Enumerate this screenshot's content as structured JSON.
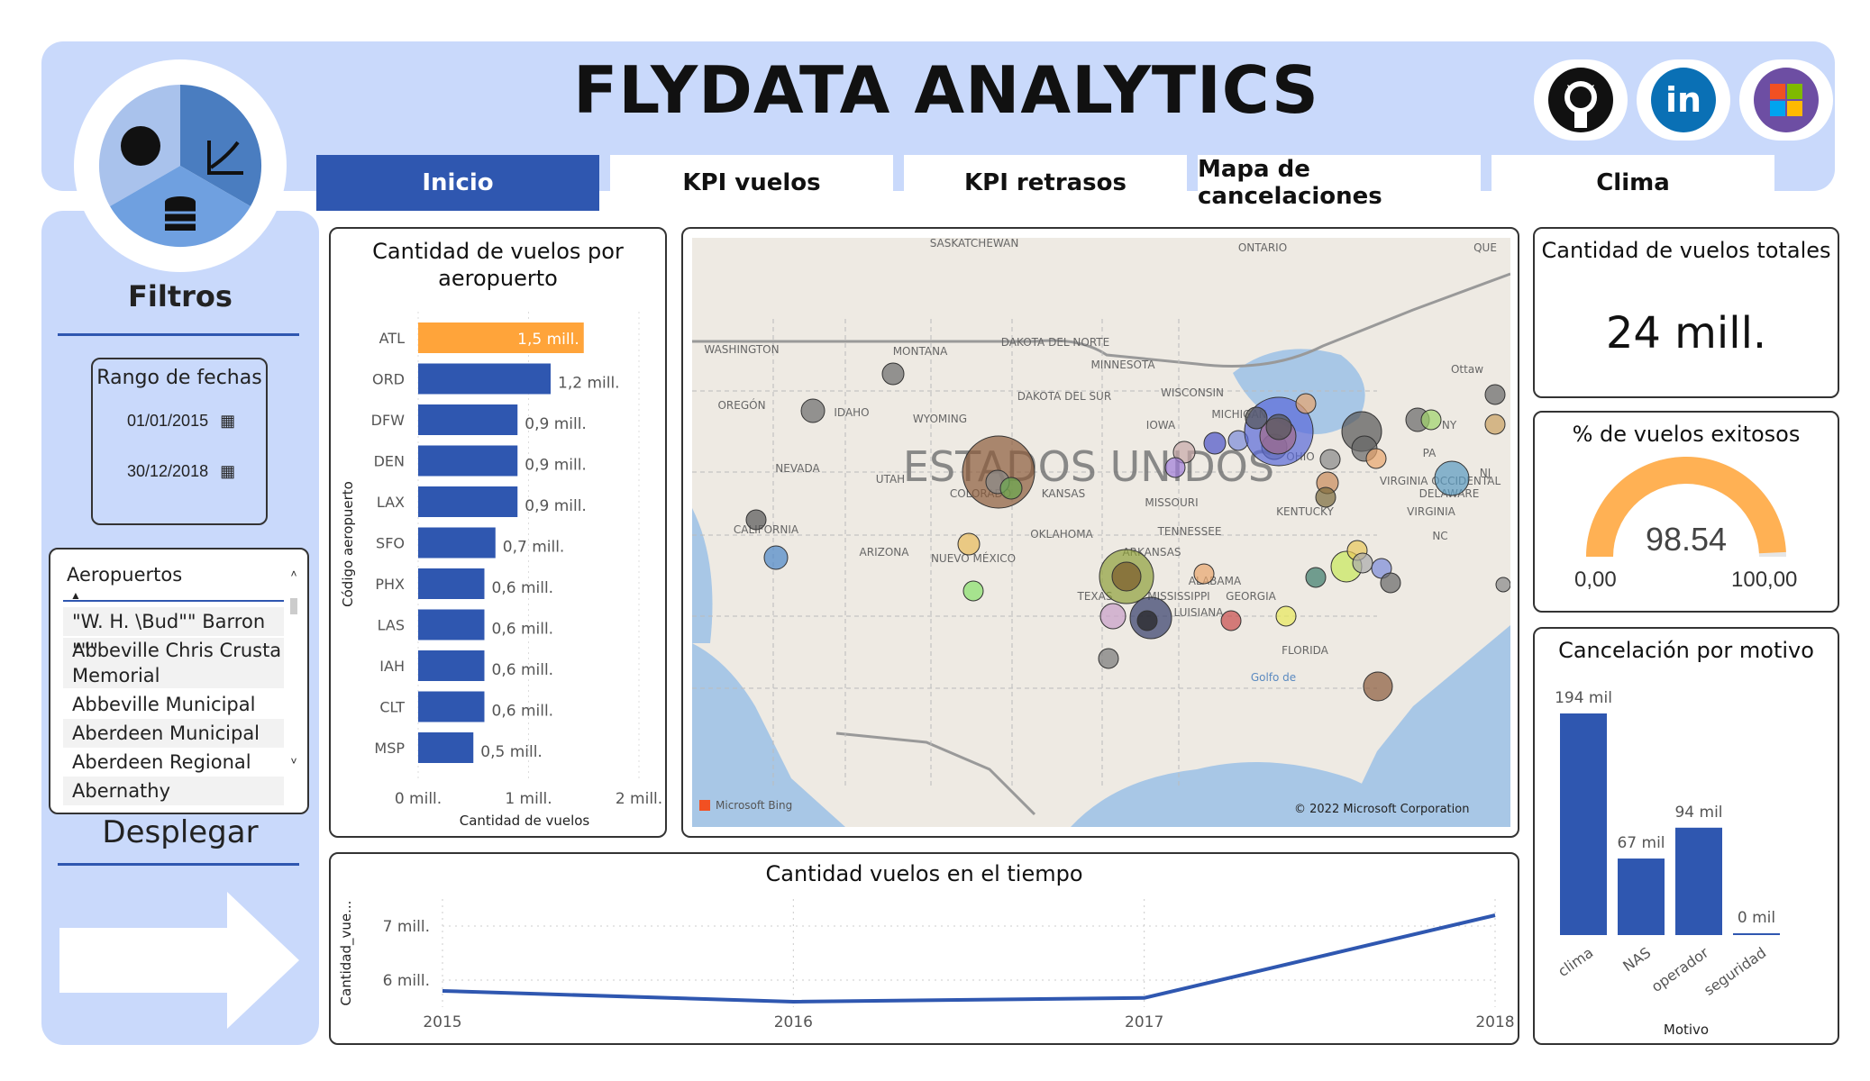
{
  "header": {
    "title": "FLYDATA ANALYTICS"
  },
  "social": [
    "github-icon",
    "linkedin-icon",
    "microsoft-icon"
  ],
  "tabs": [
    {
      "label": "Inicio",
      "active": true
    },
    {
      "label": "KPI vuelos",
      "active": false
    },
    {
      "label": "KPI retrasos",
      "active": false
    },
    {
      "label": "Mapa de cancelaciones",
      "active": false
    },
    {
      "label": "Clima",
      "active": false
    }
  ],
  "sidebar": {
    "filters_title": "Filtros",
    "date_range": {
      "label": "Rango de fechas",
      "start": "01/01/2015",
      "end": "30/12/2018"
    },
    "airports": {
      "header": "Aeropuertos",
      "items": [
        "\"W. H. \\Bud\"\" Barron \"\"\"",
        "Abbeville Chris Crusta Memorial",
        "Abbeville Municipal",
        "Aberdeen Municipal",
        "Aberdeen Regional",
        "Abernathy"
      ]
    },
    "expand_label": "Desplegar"
  },
  "bar_chart": {
    "title": "Cantidad de vuelos por aeropuerto",
    "xlabel": "Cantidad de vuelos",
    "ylabel": "Código aeropuerto",
    "xticks": [
      "0 mill.",
      "1 mill.",
      "2 mill."
    ]
  },
  "map": {
    "country_label": "ESTADOS UNIDOS",
    "copyright": "© 2022 Microsoft Corporation",
    "brand": "Microsoft Bing",
    "labels": [
      "SASKATCHEWAN",
      "ONTARIO",
      "QUE",
      "WASHINGTON",
      "MONTANA",
      "DAKOTA DEL NORTE",
      "MINNESOTA",
      "Ottaw",
      "OREGÓN",
      "IDAHO",
      "WYOMING",
      "DAKOTA DEL SUR",
      "WISCONSIN",
      "MICHIGAN",
      "NY",
      "IOWA",
      "OHIO",
      "PA",
      "NJ",
      "NEVADA",
      "UTAH",
      "COLORADO",
      "KANSAS",
      "MISSOURI",
      "VIRGINIA OCCIDENTAL",
      "DELAWARE",
      "KENTUCKY",
      "VIRGINIA",
      "CALIFORNIA",
      "OKLAHOMA",
      "TENNESSEE",
      "NC",
      "ARIZONA",
      "NUEVO MÉXICO",
      "ARKANSAS",
      "ALABAMA",
      "TEXAS",
      "MISSISSIPPI",
      "GEORGIA",
      "LUISIANA",
      "FLORIDA",
      "Golfo de"
    ]
  },
  "kpi_total": {
    "title": "Cantidad de vuelos totales",
    "value": "24 mill."
  },
  "gauge": {
    "title": "% de vuelos exitosos",
    "value": 98.54,
    "value_label": "98.54",
    "min_label": "0,00",
    "max_label": "100,00",
    "min": 0,
    "max": 100
  },
  "cancel_chart": {
    "title": "Cancelación por motivo",
    "xlabel": "Motivo"
  },
  "line_chart": {
    "title": "Cantidad vuelos en el tiempo",
    "ylabel": "Cantidad_vue..."
  },
  "colors": {
    "accent": "#2f57b0",
    "highlight": "#ffa43a",
    "light": "#c9d9fb",
    "gauge": "#ffb154"
  },
  "chart_data": [
    {
      "type": "bar",
      "orientation": "horizontal",
      "title": "Cantidad de vuelos por aeropuerto",
      "categories": [
        "ATL",
        "ORD",
        "DFW",
        "DEN",
        "LAX",
        "SFO",
        "PHX",
        "LAS",
        "IAH",
        "CLT",
        "MSP"
      ],
      "values": [
        1.5,
        1.2,
        0.9,
        0.9,
        0.9,
        0.7,
        0.6,
        0.6,
        0.6,
        0.6,
        0.5
      ],
      "labels": [
        "1,5 mill.",
        "1,2 mill.",
        "0,9 mill.",
        "0,9 mill.",
        "0,9 mill.",
        "0,7 mill.",
        "0,6 mill.",
        "0,6 mill.",
        "0,6 mill.",
        "0,6 mill.",
        "0,5 mill."
      ],
      "xlabel": "Cantidad de vuelos",
      "ylabel": "Código aeropuerto",
      "xlim": [
        0,
        2
      ]
    },
    {
      "type": "bar",
      "title": "Cancelación por motivo",
      "categories": [
        "clima",
        "NAS",
        "operador",
        "seguridad"
      ],
      "values": [
        194,
        67,
        94,
        0
      ],
      "labels": [
        "194 mil",
        "67 mil",
        "94 mil",
        "0 mil"
      ],
      "xlabel": "Motivo"
    },
    {
      "type": "line",
      "title": "Cantidad vuelos en el tiempo",
      "x": [
        "2015",
        "2016",
        "2017",
        "2018"
      ],
      "values": [
        5.8,
        5.6,
        5.67,
        7.2
      ],
      "yticks": [
        "6 mill.",
        "7 mill."
      ],
      "ylabel": "Cantidad_vue...",
      "ylim": [
        5.5,
        7.5
      ]
    }
  ]
}
